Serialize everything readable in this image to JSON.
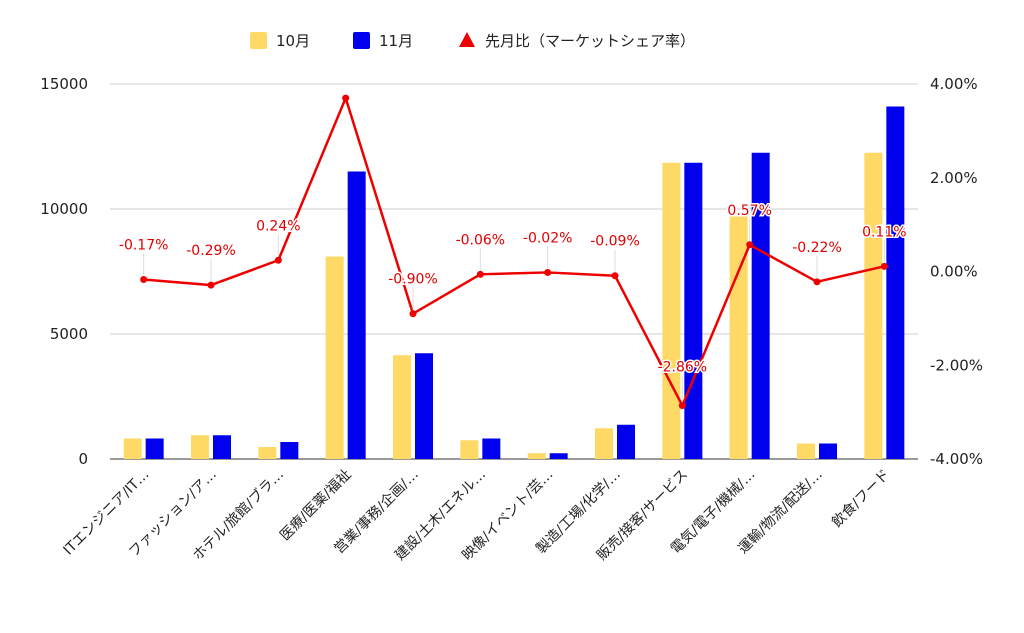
{
  "chart_data": {
    "type": "bar",
    "categories": [
      "ITエンジニア/IT…",
      "ファッション/ア…",
      "ホテル/旅館/ブラ…",
      "医療/医薬/福祉",
      "営業/事務/企画/…",
      "建設/土木/エネル…",
      "映像/イベント/芸…",
      "製造/工場/化学/…",
      "販売/接客/サービス",
      "電気/電子/機械/…",
      "運輸/物流/配送/…",
      "飲食/フード"
    ],
    "series": [
      {
        "name": "10月",
        "kind": "bar",
        "axis": "left",
        "color": "#FFD966",
        "values": [
          820,
          950,
          480,
          8100,
          4150,
          750,
          230,
          1230,
          11850,
          9700,
          620,
          12250
        ]
      },
      {
        "name": "11月",
        "kind": "bar",
        "axis": "left",
        "color": "#0000EE",
        "values": [
          820,
          950,
          680,
          11500,
          4230,
          820,
          230,
          1370,
          11850,
          12250,
          620,
          14100
        ]
      },
      {
        "name": "先月比（マーケットシェア率）",
        "kind": "line",
        "axis": "right",
        "color": "#EE0000",
        "values": [
          -0.17,
          -0.29,
          0.24,
          3.7,
          -0.9,
          -0.06,
          -0.02,
          -0.09,
          -2.86,
          0.57,
          -0.22,
          0.11
        ],
        "labels": [
          "-0.17%",
          "-0.29%",
          "0.24%",
          "",
          "-0.90%",
          "-0.06%",
          "-0.02%",
          "-0.09%",
          "-2.86%",
          "0.57%",
          "-0.22%",
          "0.11%"
        ]
      }
    ],
    "left_axis": {
      "ylim": [
        0,
        15000
      ],
      "ticks": [
        "0",
        "5000",
        "10000",
        "15000"
      ]
    },
    "right_axis": {
      "ylim": [
        -4,
        4
      ],
      "ticks": [
        "-4.00%",
        "-2.00%",
        "0.00%",
        "2.00%",
        "4.00%"
      ]
    },
    "grid": true,
    "legend_position": "top"
  }
}
